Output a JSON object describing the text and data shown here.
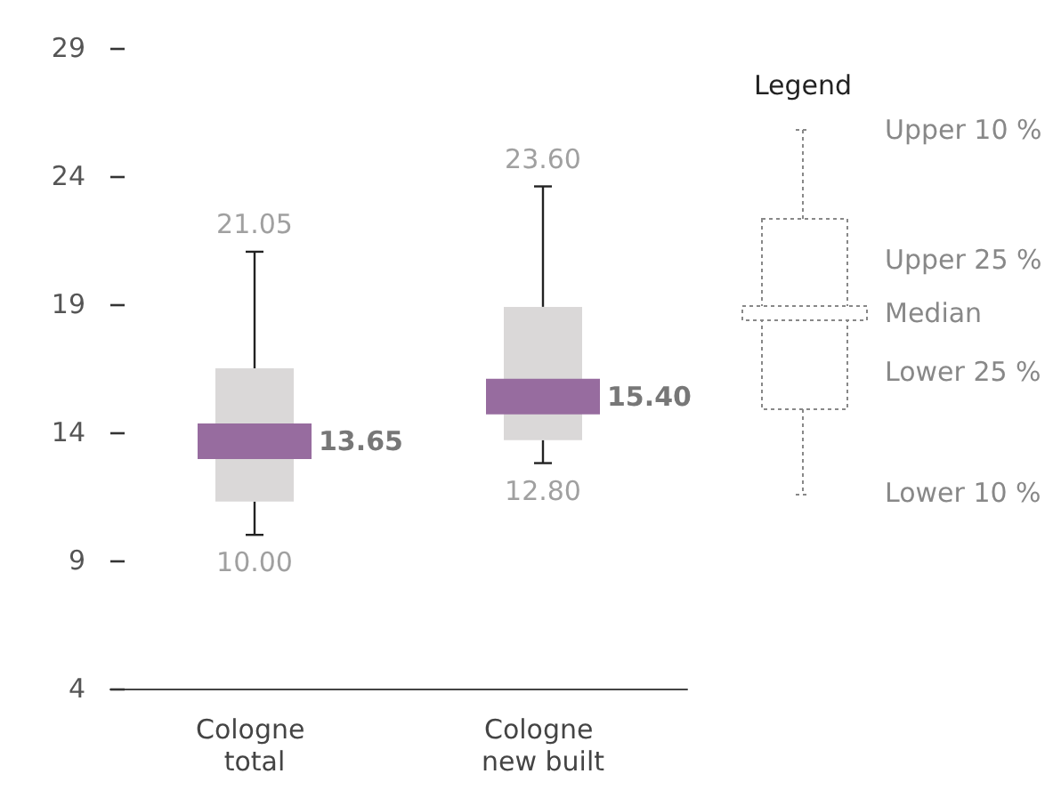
{
  "chart_data": {
    "type": "box",
    "categories": [
      "Cologne total",
      "Cologne new built"
    ],
    "series": [
      {
        "color": "#dad8d8",
        "boxes": [
          {
            "low": 10.0,
            "q1": 11.3,
            "median": 13.65,
            "q3": 16.5,
            "high": 21.05
          },
          {
            "low": 12.8,
            "q1": 13.7,
            "median": 15.4,
            "q3": 18.9,
            "high": 23.6
          }
        ]
      }
    ],
    "ylim": [
      4,
      29
    ],
    "yticks": [
      4,
      9,
      14,
      19,
      24,
      29
    ],
    "grid": false,
    "annotations": [
      "Legend",
      "Upper 10 %",
      "Upper 25 %",
      "Median",
      "Lower 25 %",
      "Lower 10 %",
      {
        "text": "21.05",
        "x": "Cologne total",
        "y": 21.05
      },
      {
        "text": "13.65",
        "x": "Cologne total",
        "y": 13.65
      },
      {
        "text": "10.00",
        "x": "Cologne total",
        "y": 10.0
      },
      {
        "text": "23.60",
        "x": "Cologne new built",
        "y": 23.6
      },
      {
        "text": "15.40",
        "x": "Cologne new built",
        "y": 15.4
      },
      {
        "text": "12.80",
        "x": "Cologne new built",
        "y": 12.8
      }
    ]
  }
}
